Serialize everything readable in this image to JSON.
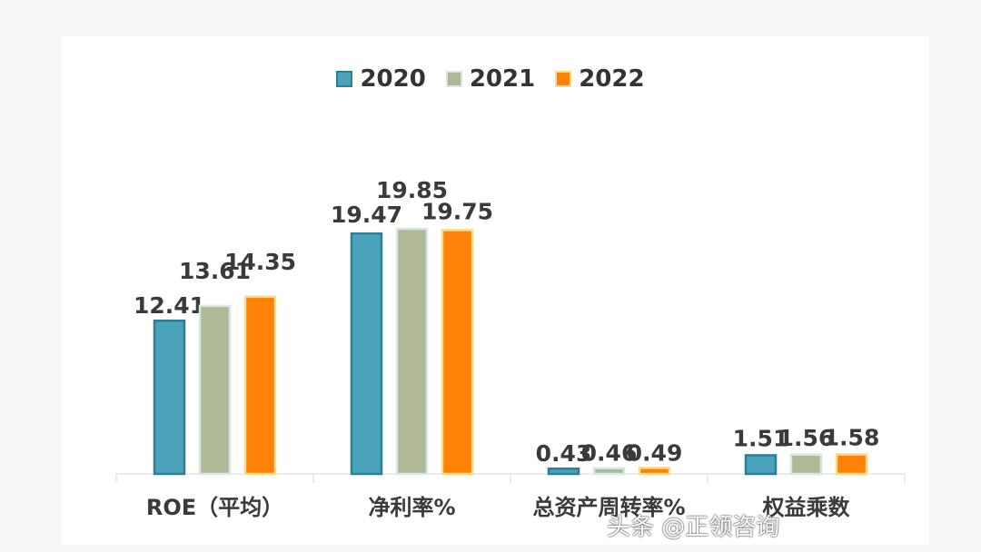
{
  "chart_data": {
    "type": "bar",
    "categories": [
      "ROE（平均）",
      "净利率%",
      "总资产周转率%",
      "权益乘数"
    ],
    "series": [
      {
        "name": "2020",
        "values": [
          12.41,
          19.47,
          0.43,
          1.51
        ],
        "color": "#4ba3bb"
      },
      {
        "name": "2021",
        "values": [
          13.61,
          19.85,
          0.46,
          1.56
        ],
        "color": "#b0b895"
      },
      {
        "name": "2022",
        "values": [
          14.35,
          19.75,
          0.49,
          1.58
        ],
        "color": "#ff8208"
      }
    ],
    "ylim": [
      0,
      21
    ],
    "grid": false,
    "legend": "top",
    "data_labels": true
  },
  "watermark": "头条 @正领咨询"
}
